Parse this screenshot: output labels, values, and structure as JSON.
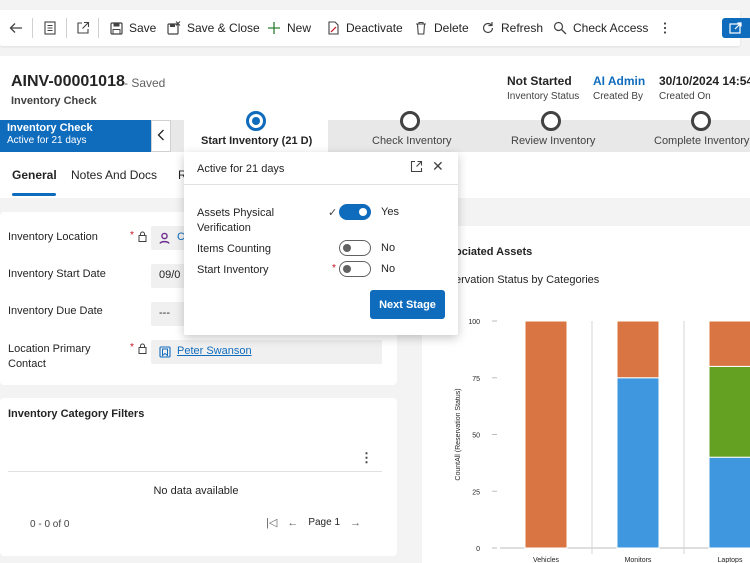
{
  "toolbar": {
    "save": "Save",
    "save_close": "Save & Close",
    "new": "New",
    "deactivate": "Deactivate",
    "delete": "Delete",
    "refresh": "Refresh",
    "check_access": "Check Access"
  },
  "header": {
    "record_id": "AINV-00001018",
    "saved_status": "- Saved",
    "record_type": "Inventory Check",
    "fields": [
      {
        "value": "Not Started",
        "label": "Inventory Status"
      },
      {
        "value": "AI Admin",
        "label": "Created By"
      },
      {
        "value": "30/10/2024 14:54",
        "label": "Created On"
      }
    ]
  },
  "bpf": {
    "process_name": "Inventory Check",
    "process_duration": "Active for 21 days",
    "stages": [
      {
        "label": "Start Inventory  (21 D)",
        "active": true
      },
      {
        "label": "Check Inventory",
        "active": false
      },
      {
        "label": "Review Inventory",
        "active": false
      },
      {
        "label": "Complete Inventory",
        "active": false
      }
    ]
  },
  "tabs": [
    {
      "label": "General",
      "active": true
    },
    {
      "label": "Notes And Docs",
      "active": false
    },
    {
      "label": "R",
      "active": false
    }
  ],
  "form": {
    "inventory_location": {
      "label": "Inventory Location",
      "value": "C"
    },
    "inventory_start_date": {
      "label": "Inventory Start Date",
      "value": "09/0"
    },
    "inventory_due_date": {
      "label": "Inventory Due Date",
      "value": "---"
    },
    "location_primary_contact": {
      "label_line1": "Location Primary",
      "label_line2": "Contact",
      "value": "Peter Swanson"
    },
    "required_mark": "*"
  },
  "filters": {
    "title": "Inventory Category Filters",
    "more": "⋮",
    "empty": "No data available",
    "count": "0 - 0 of 0",
    "page": "Page 1"
  },
  "flyout": {
    "title": "Active for 21 days",
    "steps": [
      {
        "label_line1": "Assets Physical",
        "label_line2": "Verification",
        "value": "Yes",
        "on": true,
        "mark": "✓"
      },
      {
        "label_line1": "Items Counting",
        "label_line2": "",
        "value": "No",
        "on": false,
        "mark": ""
      },
      {
        "label_line1": "Start Inventory",
        "label_line2": "",
        "value": "No",
        "on": false,
        "mark": "*"
      }
    ],
    "next_stage": "Next Stage"
  },
  "assets": {
    "title": "ociated Assets",
    "subtitle": "ervation Status by Categories"
  },
  "colors": {
    "brand": "#0f6cbd",
    "orange": "#d97543",
    "blue": "#3f97df",
    "green": "#64a022"
  },
  "chart_data": {
    "type": "bar",
    "stacked": true,
    "categories": [
      "Vehicles",
      "Monitors",
      "Laptops"
    ],
    "series": [
      {
        "values": [
          0,
          75,
          40
        ],
        "color": "#3f97df"
      },
      {
        "values": [
          0,
          0,
          40
        ],
        "color": "#64a022"
      },
      {
        "values": [
          100,
          25,
          20
        ],
        "color": "#d97543"
      }
    ],
    "ylabel": "CountAll (Reservation Status)",
    "ylim": [
      0,
      100
    ],
    "yticks": [
      0,
      25,
      50,
      75,
      100
    ]
  }
}
